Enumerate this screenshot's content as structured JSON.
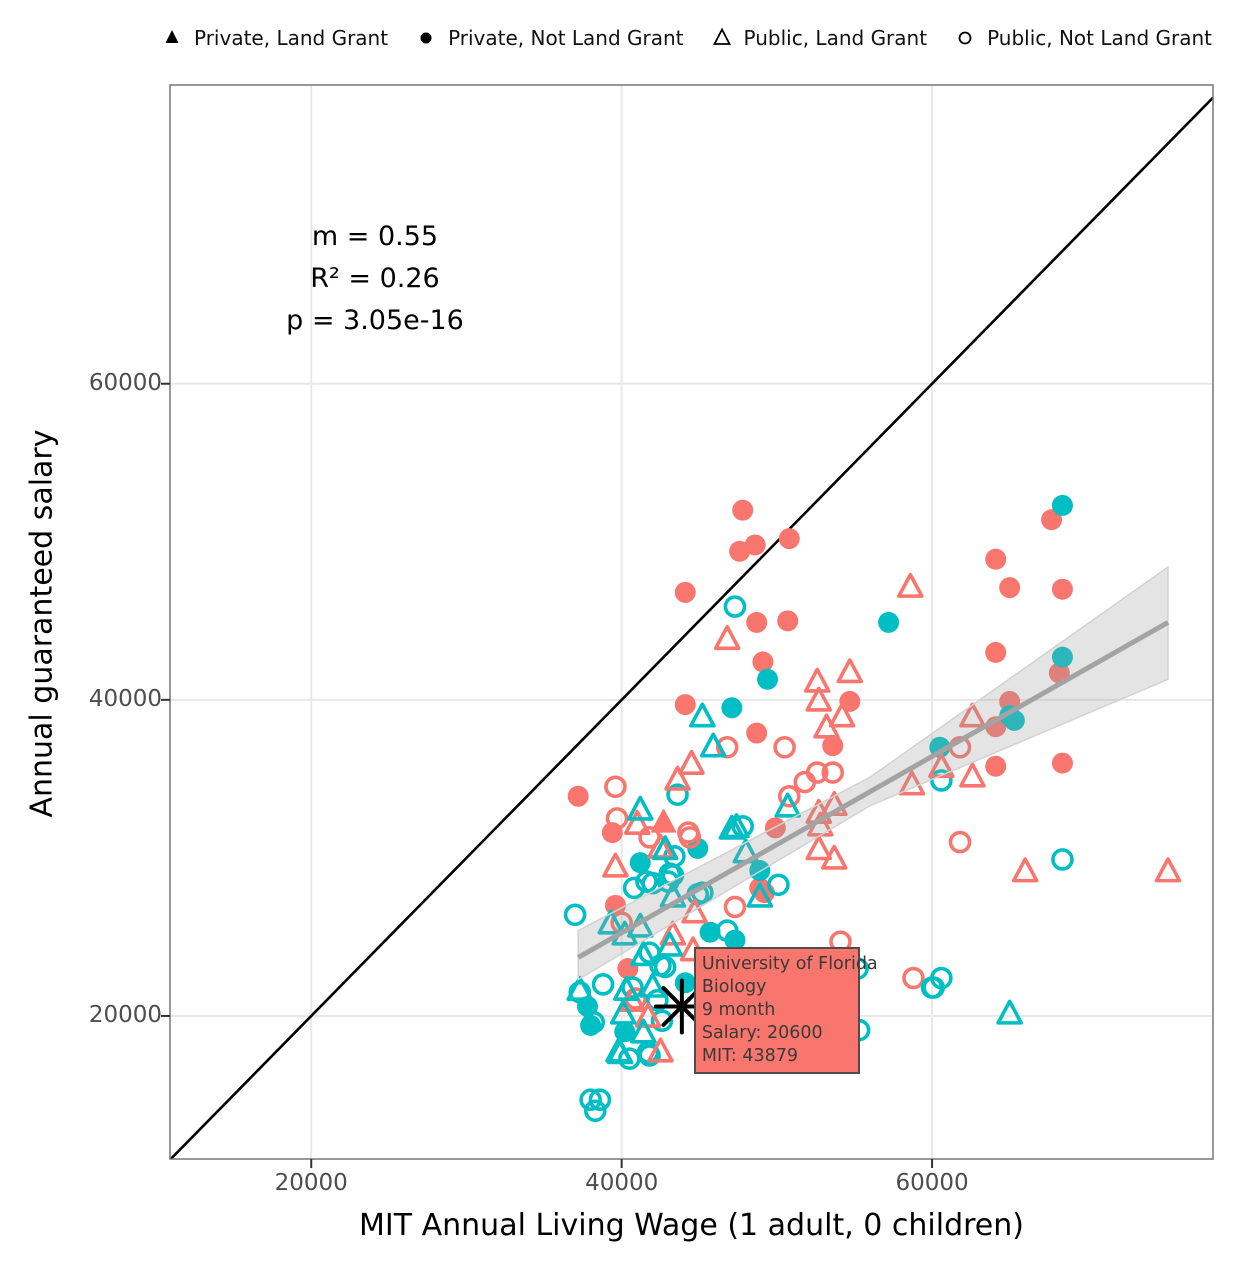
{
  "chart_data": {
    "type": "scatter",
    "title": "",
    "xlabel": "MIT Annual Living Wage (1 adult, 0 children)",
    "ylabel": "Annual guaranteed salary",
    "xlim": [
      10900,
      78100
    ],
    "ylim": [
      10950,
      78900
    ],
    "x_ticks": [
      20000,
      40000,
      60000
    ],
    "y_ticks": [
      20000,
      40000,
      60000
    ],
    "grid": "major-light",
    "legend_position": "top",
    "annotation": {
      "m": "m = 0.55",
      "r2": "R² = 0.26",
      "p": "p = 3.05e-16"
    },
    "colors": {
      "red": "#F8766D",
      "teal": "#00BFC4",
      "band": "#9e9e9e",
      "reg_line": "#a3a3a3",
      "identity_line": "#000000"
    },
    "legend": [
      {
        "label": "Private, Land Grant",
        "marker": "triangle-filled"
      },
      {
        "label": "Private, Not Land Grant",
        "marker": "circle-filled"
      },
      {
        "label": "Public, Land Grant",
        "marker": "triangle-open"
      },
      {
        "label": "Public, Not Land Grant",
        "marker": "circle-open"
      }
    ],
    "identity_line": {
      "from": [
        10950,
        10950
      ],
      "to": [
        78100,
        78100
      ]
    },
    "regression": {
      "line": [
        [
          37200,
          23700
        ],
        [
          75200,
          44900
        ]
      ],
      "band": [
        [
          37200,
          25400
        ],
        [
          56000,
          35100
        ],
        [
          75200,
          48400
        ],
        [
          75200,
          41300
        ],
        [
          56000,
          33300
        ],
        [
          37200,
          22300
        ]
      ]
    },
    "highlight": {
      "x": 43879,
      "y": 20600,
      "tooltip": [
        "University of Florida",
        "Biology",
        "9 month",
        "Salary: 20600",
        "MIT: 43879"
      ]
    },
    "series": [
      {
        "name": "Private, Not Land Grant (red)",
        "marker": "circle-filled",
        "color": "#F8766D",
        "points": [
          [
            39600,
            27000
          ],
          [
            40400,
            23000
          ],
          [
            37200,
            33900
          ],
          [
            39400,
            31600
          ],
          [
            44100,
            39700
          ],
          [
            48700,
            37900
          ],
          [
            44100,
            46800
          ],
          [
            47800,
            52000
          ],
          [
            47600,
            49400
          ],
          [
            48600,
            49800
          ],
          [
            50800,
            50200
          ],
          [
            48700,
            44900
          ],
          [
            50700,
            45000
          ],
          [
            49100,
            42400
          ],
          [
            49900,
            31900
          ],
          [
            49200,
            27800
          ],
          [
            48900,
            28100
          ],
          [
            54700,
            39900
          ],
          [
            53600,
            37100
          ],
          [
            64100,
            48900
          ],
          [
            67700,
            51400
          ],
          [
            65000,
            47100
          ],
          [
            68400,
            47000
          ],
          [
            64100,
            43000
          ],
          [
            68200,
            41700
          ],
          [
            65000,
            39900
          ],
          [
            64100,
            38300
          ],
          [
            64100,
            35800
          ],
          [
            68400,
            36000
          ]
        ]
      },
      {
        "name": "Private, Not Land Grant (teal)",
        "marker": "circle-filled",
        "color": "#00BFC4",
        "points": [
          [
            47100,
            39500
          ],
          [
            49400,
            41300
          ],
          [
            68400,
            42700
          ],
          [
            68400,
            52300
          ],
          [
            57200,
            44900
          ],
          [
            60500,
            37000
          ],
          [
            65000,
            39000
          ],
          [
            65300,
            38700
          ],
          [
            44900,
            30600
          ],
          [
            41200,
            29700
          ],
          [
            40200,
            19000
          ],
          [
            37800,
            20600
          ],
          [
            38000,
            19400
          ],
          [
            45700,
            25300
          ],
          [
            47300,
            24800
          ],
          [
            44100,
            22100
          ],
          [
            48900,
            29200
          ]
        ]
      },
      {
        "name": "Public, Not Land Grant (red)",
        "marker": "circle-open",
        "color": "#F8766D",
        "points": [
          [
            39600,
            34500
          ],
          [
            39700,
            32500
          ],
          [
            46800,
            37000
          ],
          [
            40900,
            21100
          ],
          [
            41800,
            31300
          ],
          [
            44300,
            31600
          ],
          [
            44400,
            31300
          ],
          [
            50500,
            37000
          ],
          [
            51800,
            34800
          ],
          [
            52600,
            35400
          ],
          [
            53600,
            35400
          ],
          [
            50800,
            33900
          ],
          [
            61800,
            37000
          ],
          [
            61800,
            31000
          ],
          [
            58800,
            22400
          ],
          [
            54100,
            24700
          ],
          [
            47300,
            26900
          ],
          [
            40000,
            25900
          ]
        ]
      },
      {
        "name": "Public, Not Land Grant (teal)",
        "marker": "circle-open",
        "color": "#00BFC4",
        "points": [
          [
            37000,
            26400
          ],
          [
            38800,
            22000
          ],
          [
            38200,
            19600
          ],
          [
            37300,
            21500
          ],
          [
            40700,
            21800
          ],
          [
            42300,
            21000
          ],
          [
            42600,
            19700
          ],
          [
            40500,
            17300
          ],
          [
            41800,
            17500
          ],
          [
            38000,
            14700
          ],
          [
            38600,
            14700
          ],
          [
            38300,
            14000
          ],
          [
            41700,
            17700
          ],
          [
            46800,
            25400
          ],
          [
            41800,
            24000
          ],
          [
            42500,
            23200
          ],
          [
            42800,
            23100
          ],
          [
            55200,
            23000
          ],
          [
            60000,
            21800
          ],
          [
            60600,
            22400
          ],
          [
            60100,
            21800
          ],
          [
            55300,
            19100
          ],
          [
            68400,
            29900
          ],
          [
            43400,
            30100
          ],
          [
            43100,
            29000
          ],
          [
            43000,
            28500
          ],
          [
            40800,
            28100
          ],
          [
            41600,
            28500
          ],
          [
            44900,
            27700
          ],
          [
            43600,
            34000
          ],
          [
            47300,
            45900
          ],
          [
            47800,
            32000
          ],
          [
            50100,
            28300
          ],
          [
            45200,
            27800
          ],
          [
            42000,
            28400
          ],
          [
            43300,
            28900
          ],
          [
            60600,
            34900
          ]
        ]
      },
      {
        "name": "Public, Land Grant (red)",
        "marker": "triangle-open",
        "color": "#F8766D",
        "points": [
          [
            43300,
            25100
          ],
          [
            44700,
            26500
          ],
          [
            42500,
            17700
          ],
          [
            40700,
            20900
          ],
          [
            41700,
            19900
          ],
          [
            44500,
            35900
          ],
          [
            43600,
            34900
          ],
          [
            41000,
            32100
          ],
          [
            39600,
            29400
          ],
          [
            52700,
            39900
          ],
          [
            52600,
            41100
          ],
          [
            54700,
            41700
          ],
          [
            54200,
            38900
          ],
          [
            53200,
            38200
          ],
          [
            52700,
            32800
          ],
          [
            53700,
            33300
          ],
          [
            52800,
            32000
          ],
          [
            52700,
            30500
          ],
          [
            53700,
            29900
          ],
          [
            42500,
            30600
          ],
          [
            58700,
            34600
          ],
          [
            60600,
            35700
          ],
          [
            62600,
            35100
          ],
          [
            62600,
            38900
          ],
          [
            66000,
            29100
          ],
          [
            75200,
            29100
          ],
          [
            58600,
            47100
          ],
          [
            46800,
            43800
          ],
          [
            44600,
            24100
          ]
        ]
      },
      {
        "name": "Public, Land Grant (teal)",
        "marker": "triangle-open",
        "color": "#00BFC4",
        "points": [
          [
            45200,
            38900
          ],
          [
            45900,
            37000
          ],
          [
            41200,
            33000
          ],
          [
            42800,
            30500
          ],
          [
            50700,
            33200
          ],
          [
            40300,
            21600
          ],
          [
            40100,
            20100
          ],
          [
            41400,
            18900
          ],
          [
            39800,
            17700
          ],
          [
            39900,
            17600
          ],
          [
            65000,
            20100
          ],
          [
            47100,
            31800
          ],
          [
            47400,
            31900
          ],
          [
            48000,
            30300
          ],
          [
            48900,
            27500
          ],
          [
            37300,
            21600
          ],
          [
            42000,
            21800
          ],
          [
            39300,
            25800
          ],
          [
            40200,
            25100
          ],
          [
            41200,
            25600
          ],
          [
            43100,
            24400
          ],
          [
            43300,
            27500
          ],
          [
            41400,
            23800
          ]
        ]
      },
      {
        "name": "Private, Land Grant (red)",
        "marker": "triangle-filled",
        "color": "#F8766D",
        "points": [
          [
            42700,
            32200
          ]
        ]
      }
    ]
  }
}
